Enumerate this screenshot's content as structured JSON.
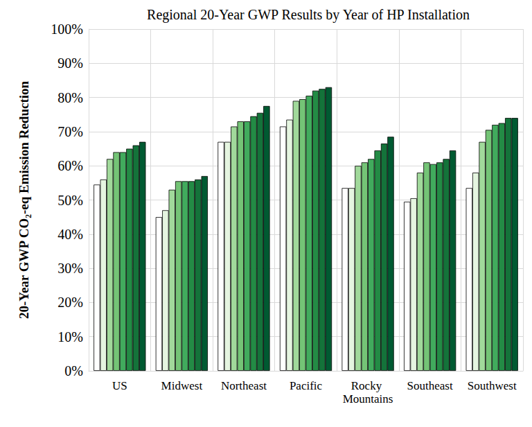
{
  "chart_data": {
    "type": "bar",
    "title": "Regional 20-Year GWP Results by Year of HP Installation",
    "y_label": "20-Year GWP CO₂-eq Emission Reduction",
    "categories": [
      "US",
      "Midwest",
      "Northeast",
      "Pacific",
      "Rocky Mountains",
      "Southeast",
      "Southwest"
    ],
    "series": [
      {
        "color": "#ffffff",
        "values": [
          54.5,
          45,
          67,
          71.5,
          53.5,
          49.5,
          53.5
        ]
      },
      {
        "color": "#e5f5e0",
        "values": [
          56,
          47,
          67,
          73.5,
          53.5,
          50.5,
          58
        ]
      },
      {
        "color": "#a1d99b",
        "values": [
          62,
          53,
          71.5,
          79,
          60,
          58,
          67
        ]
      },
      {
        "color": "#74c476",
        "values": [
          64,
          55.5,
          73,
          79.5,
          61,
          61,
          70.5
        ]
      },
      {
        "color": "#41ab5d",
        "values": [
          64,
          55.5,
          73,
          80.5,
          62,
          60.5,
          72
        ]
      },
      {
        "color": "#238b45",
        "values": [
          65,
          55.5,
          74.5,
          82,
          64.5,
          61,
          72.5
        ]
      },
      {
        "color": "#14733a",
        "values": [
          66,
          56,
          75.5,
          82.5,
          66.5,
          62,
          74
        ]
      },
      {
        "color": "#005a32",
        "values": [
          67,
          57,
          77.5,
          83,
          68.5,
          64.5,
          74
        ]
      }
    ],
    "ylim": [
      0,
      100
    ],
    "yticks": [
      {
        "value": 0,
        "label": "0%"
      },
      {
        "value": 10,
        "label": "10%"
      },
      {
        "value": 20,
        "label": "20%"
      },
      {
        "value": 30,
        "label": "30%"
      },
      {
        "value": 40,
        "label": "40%"
      },
      {
        "value": 50,
        "label": "50%"
      },
      {
        "value": 60,
        "label": "60%"
      },
      {
        "value": 70,
        "label": "70%"
      },
      {
        "value": 80,
        "label": "80%"
      },
      {
        "value": 90,
        "label": "90%"
      },
      {
        "value": 100,
        "label": "100%"
      }
    ],
    "grid": true
  }
}
